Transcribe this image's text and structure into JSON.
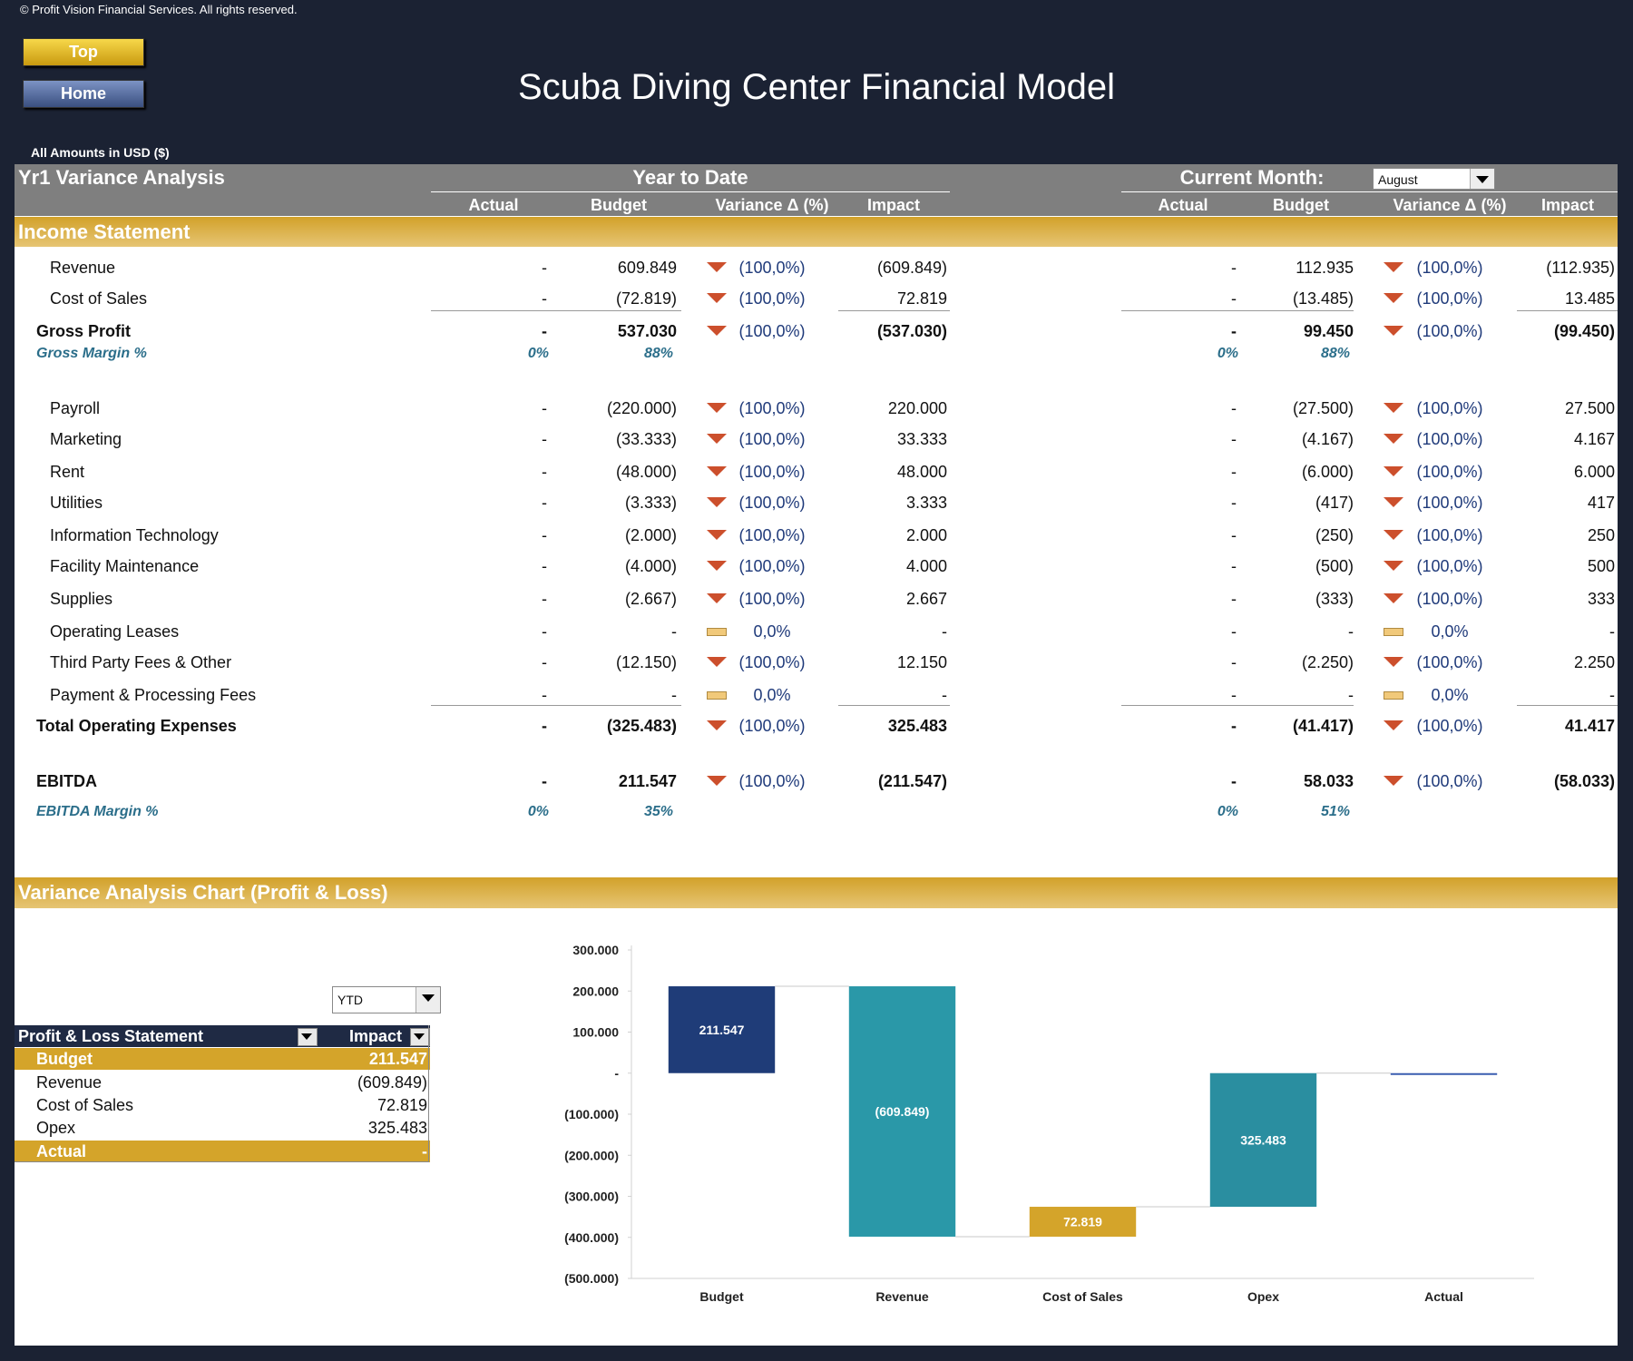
{
  "header": {
    "copyright": "© Profit Vision Financial Services. All rights reserved.",
    "buttons": [
      "Top",
      "Home"
    ],
    "title": "Scuba Diving Center Financial Model",
    "amounts": "All Amounts in  USD ($)"
  },
  "table": {
    "title": "Yr1 Variance Analysis",
    "ytd_heading": "Year to Date",
    "cm_heading": "Current Month:",
    "month": "August",
    "columns": [
      "Actual",
      "Budget",
      "Variance Δ  (%)",
      "Impact"
    ],
    "section": "Income Statement",
    "rows": [
      {
        "label": "Revenue",
        "ytd": [
          "-",
          "609.849",
          "(100,0%)",
          "(609.849)"
        ],
        "cm": [
          "-",
          "112.935",
          "(100,0%)",
          "(112.935)"
        ]
      },
      {
        "label": "Cost of Sales",
        "ytd": [
          "-",
          "(72.819)",
          "(100,0%)",
          "72.819"
        ],
        "cm": [
          "-",
          "(13.485)",
          "(100,0%)",
          "13.485"
        ]
      },
      {
        "label": "Gross Profit",
        "ytd": [
          "-",
          "537.030",
          "(100,0%)",
          "(537.030)"
        ],
        "cm": [
          "-",
          "99.450",
          "(100,0%)",
          "(99.450)"
        ]
      },
      {
        "label": "Gross Margin %",
        "ytd": [
          "0%",
          "88%"
        ],
        "cm": [
          "0%",
          "88%"
        ]
      },
      {
        "label": "Payroll",
        "ytd": [
          "-",
          "(220.000)",
          "(100,0%)",
          "220.000"
        ],
        "cm": [
          "-",
          "(27.500)",
          "(100,0%)",
          "27.500"
        ]
      },
      {
        "label": "Marketing",
        "ytd": [
          "-",
          "(33.333)",
          "(100,0%)",
          "33.333"
        ],
        "cm": [
          "-",
          "(4.167)",
          "(100,0%)",
          "4.167"
        ]
      },
      {
        "label": "Rent",
        "ytd": [
          "-",
          "(48.000)",
          "(100,0%)",
          "48.000"
        ],
        "cm": [
          "-",
          "(6.000)",
          "(100,0%)",
          "6.000"
        ]
      },
      {
        "label": "Utilities",
        "ytd": [
          "-",
          "(3.333)",
          "(100,0%)",
          "3.333"
        ],
        "cm": [
          "-",
          "(417)",
          "(100,0%)",
          "417"
        ]
      },
      {
        "label": "Information Technology",
        "ytd": [
          "-",
          "(2.000)",
          "(100,0%)",
          "2.000"
        ],
        "cm": [
          "-",
          "(250)",
          "(100,0%)",
          "250"
        ]
      },
      {
        "label": "Facility Maintenance",
        "ytd": [
          "-",
          "(4.000)",
          "(100,0%)",
          "4.000"
        ],
        "cm": [
          "-",
          "(500)",
          "(100,0%)",
          "500"
        ]
      },
      {
        "label": "Supplies",
        "ytd": [
          "-",
          "(2.667)",
          "(100,0%)",
          "2.667"
        ],
        "cm": [
          "-",
          "(333)",
          "(100,0%)",
          "333"
        ]
      },
      {
        "label": "Operating Leases",
        "ytd": [
          "-",
          "-",
          "0,0%",
          "-"
        ],
        "cm": [
          "-",
          "-",
          "0,0%",
          "-"
        ]
      },
      {
        "label": "Third Party Fees & Other",
        "ytd": [
          "-",
          "(12.150)",
          "(100,0%)",
          "12.150"
        ],
        "cm": [
          "-",
          "(2.250)",
          "(100,0%)",
          "2.250"
        ]
      },
      {
        "label": "Payment & Processing Fees",
        "ytd": [
          "-",
          "-",
          "0,0%",
          "-"
        ],
        "cm": [
          "-",
          "-",
          "0,0%",
          "-"
        ]
      },
      {
        "label": "Total Operating Expenses",
        "ytd": [
          "-",
          "(325.483)",
          "(100,0%)",
          "325.483"
        ],
        "cm": [
          "-",
          "(41.417)",
          "(100,0%)",
          "41.417"
        ]
      },
      {
        "label": "EBITDA",
        "ytd": [
          "-",
          "211.547",
          "(100,0%)",
          "(211.547)"
        ],
        "cm": [
          "-",
          "58.033",
          "(100,0%)",
          "(58.033)"
        ]
      },
      {
        "label": "EBITDA Margin %",
        "ytd": [
          "0%",
          "35%"
        ],
        "cm": [
          "0%",
          "51%"
        ]
      }
    ]
  },
  "chart_section": {
    "title": "Variance Analysis Chart (Profit & Loss)",
    "selector": "YTD",
    "pl_table": {
      "headers": [
        "Profit & Loss Statement",
        "Impact"
      ],
      "rows": [
        [
          "Budget",
          "211.547"
        ],
        [
          "Revenue",
          "(609.849)"
        ],
        [
          "Cost of Sales",
          "72.819"
        ],
        [
          "Opex",
          "325.483"
        ],
        [
          "Actual",
          "-"
        ]
      ]
    }
  },
  "chart_data": {
    "type": "waterfall",
    "categories": [
      "Budget",
      "Revenue",
      "Cost of Sales",
      "Opex",
      "Actual"
    ],
    "values": [
      211547,
      -609849,
      72819,
      325483,
      0
    ],
    "value_labels": [
      "211.547",
      "(609.849)",
      "72.819",
      "325.483",
      null
    ],
    "colors": [
      "#1f3c78",
      "#2a98a8",
      "#d4a42a",
      "#2a8ea0",
      "#3a5db0"
    ],
    "ylim": [
      -500000,
      300000
    ],
    "yticks": [
      {
        "value": 300000,
        "label": "300.000"
      },
      {
        "value": 200000,
        "label": "200.000"
      },
      {
        "value": 100000,
        "label": "100.000"
      },
      {
        "value": 0,
        "label": "-"
      },
      {
        "value": -100000,
        "label": "(100.000)"
      },
      {
        "value": -200000,
        "label": "(200.000)"
      },
      {
        "value": -300000,
        "label": "(300.000)"
      },
      {
        "value": -400000,
        "label": "(400.000)"
      },
      {
        "value": -500000,
        "label": "(500.000)"
      }
    ]
  }
}
